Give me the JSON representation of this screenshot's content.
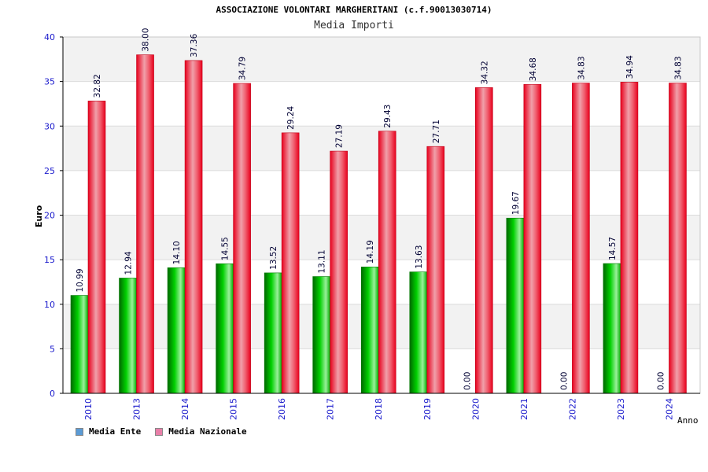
{
  "chart_data": {
    "type": "bar",
    "title": "ASSOCIAZIONE VOLONTARI MARGHERITANI (c.f.90013030714)",
    "subtitle": "Media Importi",
    "xlabel": "Anno",
    "ylabel": "Euro",
    "ylim": [
      0,
      40
    ],
    "yticks": [
      "0",
      "5",
      "10",
      "15",
      "20",
      "25",
      "30",
      "35",
      "40"
    ],
    "categories": [
      "2010",
      "2013",
      "2014",
      "2015",
      "2016",
      "2017",
      "2018",
      "2019",
      "2020",
      "2021",
      "2022",
      "2023",
      "2024"
    ],
    "series": [
      {
        "name": "Media Ente",
        "color": "#00c000",
        "legend_color": "#5b9bd5",
        "values": [
          10.99,
          12.94,
          14.1,
          14.55,
          13.52,
          13.11,
          14.19,
          13.63,
          0.0,
          19.67,
          0.0,
          14.57,
          0.0
        ],
        "labels": [
          "10.99",
          "12.94",
          "14.10",
          "14.55",
          "13.52",
          "13.11",
          "14.19",
          "13.63",
          "0.00",
          "19.67",
          "0.00",
          "14.57",
          "0.00"
        ]
      },
      {
        "name": "Media Nazionale",
        "color": "#e8001c",
        "legend_color": "#e87fa8",
        "values": [
          32.82,
          38.0,
          37.36,
          34.79,
          29.24,
          27.19,
          29.43,
          27.71,
          34.32,
          34.68,
          34.83,
          34.94,
          34.83
        ],
        "labels": [
          "32.82",
          "38.00",
          "37.36",
          "34.79",
          "29.24",
          "27.19",
          "29.43",
          "27.71",
          "34.32",
          "34.68",
          "34.83",
          "34.94",
          "34.83"
        ]
      }
    ],
    "grid": true,
    "legend_position": "bottom-left"
  }
}
